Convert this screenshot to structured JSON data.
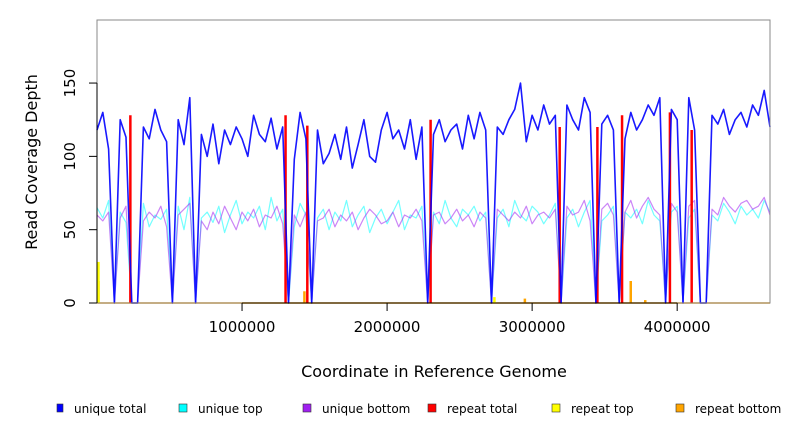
{
  "chart_data": {
    "type": "line",
    "title": "",
    "xlabel": "Coordinate in Reference Genome",
    "ylabel": "Read Coverage Depth",
    "xlim": [
      0,
      4640000
    ],
    "ylim": [
      0,
      193
    ],
    "x_ticks": [
      1000000,
      2000000,
      3000000,
      4000000
    ],
    "x_tick_labels": [
      "1000000",
      "2000000",
      "3000000",
      "4000000"
    ],
    "y_ticks": [
      0,
      50,
      100,
      150
    ],
    "y_tick_labels": [
      "0",
      "50",
      "100",
      "150"
    ],
    "grid": false,
    "legend_placement": "bottom",
    "x_start": 0,
    "x_step": 40000,
    "series": [
      {
        "name": "unique top",
        "color": "#00ffff",
        "values": [
          65,
          58,
          70,
          0,
          62,
          55,
          0,
          0,
          68,
          52,
          60,
          57,
          64,
          0,
          66,
          50,
          72,
          0,
          58,
          62,
          55,
          66,
          48,
          60,
          70,
          54,
          62,
          58,
          66,
          50,
          72,
          56,
          64,
          0,
          52,
          68,
          60,
          0,
          58,
          64,
          50,
          62,
          56,
          70,
          52,
          60,
          66,
          48,
          58,
          64,
          54,
          62,
          70,
          50,
          60,
          58,
          66,
          0,
          62,
          54,
          70,
          58,
          52,
          64,
          60,
          66,
          56,
          62,
          0,
          58,
          64,
          52,
          70,
          60,
          56,
          66,
          62,
          54,
          60,
          68,
          0,
          58,
          64,
          52,
          62,
          70,
          0,
          56,
          60,
          66,
          0,
          62,
          58,
          64,
          54,
          70,
          60,
          56,
          0,
          62,
          66,
          0,
          58,
          64,
          0,
          0,
          60,
          56,
          68,
          62,
          54,
          66,
          60,
          64,
          58,
          70,
          62
        ]
      },
      {
        "name": "unique bottom",
        "color": "#a020f0",
        "values": [
          60,
          56,
          62,
          0,
          58,
          66,
          0,
          0,
          56,
          62,
          58,
          66,
          52,
          0,
          60,
          64,
          68,
          0,
          56,
          50,
          62,
          54,
          66,
          58,
          50,
          62,
          56,
          64,
          52,
          60,
          58,
          66,
          54,
          0,
          60,
          52,
          62,
          0,
          56,
          58,
          64,
          52,
          60,
          56,
          62,
          50,
          58,
          64,
          60,
          54,
          56,
          62,
          52,
          60,
          58,
          64,
          56,
          0,
          60,
          62,
          54,
          58,
          64,
          56,
          60,
          52,
          62,
          58,
          0,
          64,
          60,
          56,
          62,
          58,
          66,
          54,
          60,
          62,
          58,
          64,
          0,
          66,
          60,
          62,
          70,
          56,
          0,
          64,
          68,
          60,
          0,
          62,
          70,
          58,
          66,
          72,
          64,
          60,
          0,
          68,
          62,
          0,
          66,
          70,
          0,
          0,
          64,
          60,
          72,
          66,
          62,
          68,
          70,
          64,
          66,
          72,
          60
        ]
      },
      {
        "name": "unique total",
        "color": "#0000ff",
        "values": [
          118,
          130,
          105,
          0,
          125,
          113,
          0,
          0,
          120,
          112,
          132,
          118,
          110,
          0,
          125,
          108,
          140,
          0,
          115,
          100,
          122,
          95,
          118,
          108,
          120,
          112,
          100,
          128,
          115,
          110,
          126,
          105,
          120,
          0,
          98,
          130,
          112,
          0,
          118,
          95,
          102,
          115,
          98,
          120,
          92,
          108,
          125,
          100,
          96,
          118,
          130,
          112,
          118,
          105,
          125,
          98,
          120,
          0,
          115,
          125,
          110,
          118,
          122,
          105,
          128,
          112,
          130,
          118,
          0,
          120,
          115,
          125,
          132,
          150,
          110,
          128,
          118,
          135,
          122,
          128,
          0,
          135,
          125,
          118,
          140,
          130,
          0,
          122,
          128,
          118,
          0,
          112,
          130,
          118,
          125,
          135,
          128,
          140,
          0,
          132,
          125,
          0,
          140,
          118,
          0,
          0,
          128,
          122,
          132,
          115,
          125,
          130,
          120,
          135,
          128,
          145,
          120
        ]
      },
      {
        "name": "repeat total",
        "color": "#ff0000",
        "spikes": [
          [
            230000,
            128
          ],
          [
            1300000,
            128
          ],
          [
            1450000,
            121
          ],
          [
            2300000,
            125
          ],
          [
            3190000,
            120
          ],
          [
            3450000,
            120
          ],
          [
            3620000,
            128
          ],
          [
            3950000,
            130
          ],
          [
            4100000,
            118
          ]
        ]
      },
      {
        "name": "repeat top",
        "color": "#ffff00",
        "spikes": [
          [
            10000,
            28
          ],
          [
            2740000,
            4
          ]
        ]
      },
      {
        "name": "repeat bottom",
        "color": "#ffa500",
        "spikes": [
          [
            10000,
            15
          ],
          [
            1430000,
            8
          ],
          [
            2950000,
            3
          ],
          [
            3680000,
            15
          ],
          [
            3780000,
            2
          ]
        ]
      }
    ]
  }
}
